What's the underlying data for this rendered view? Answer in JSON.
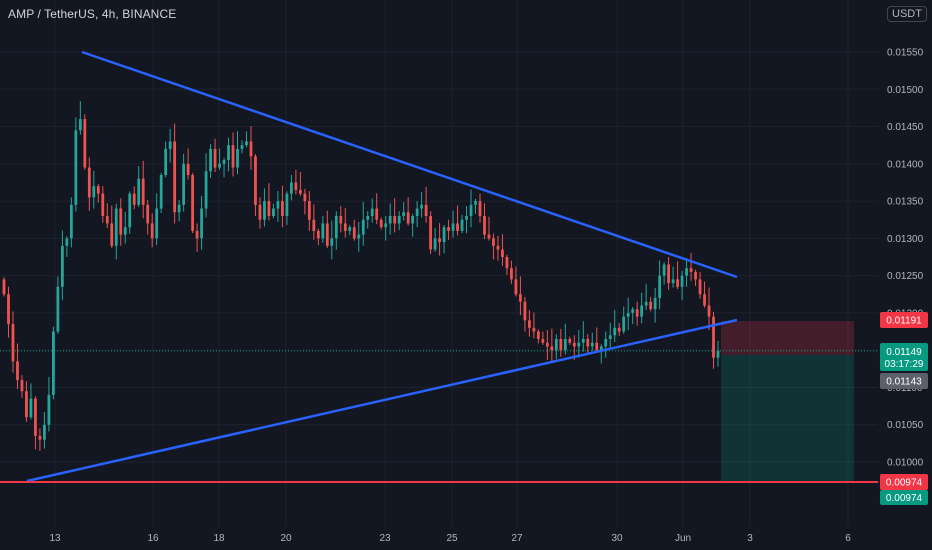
{
  "header": {
    "title": "AMP / TetherUS, 4h, BINANCE",
    "currency_button": "USDT"
  },
  "price_tags": {
    "target": {
      "label": "0.01191",
      "value": 0.01191,
      "color": "#f23645"
    },
    "current": {
      "label": "0.01149",
      "value": 0.01149,
      "color": "#089981"
    },
    "countdown": {
      "label": "03:17:29",
      "color": "#089981"
    },
    "crosshair": {
      "label": "0.01143",
      "value": 0.01143,
      "color": "#5d606b"
    },
    "horizontal_line": {
      "label": "0.00974",
      "value": 0.00974,
      "color": "#f23645"
    },
    "stop": {
      "label": "0.00974",
      "value": 0.00974,
      "color": "#089981"
    }
  },
  "chart_data": {
    "type": "candlestick",
    "title": "AMP / TetherUS, 4h, BINANCE",
    "y_ticks": [
      "0.01550",
      "0.01500",
      "0.01450",
      "0.01400",
      "0.01350",
      "0.01300",
      "0.01250",
      "0.01200",
      "0.01150",
      "0.01100",
      "0.01050",
      "0.01000"
    ],
    "y_tick_values": [
      0.0155,
      0.015,
      0.0145,
      0.014,
      0.0135,
      0.013,
      0.0125,
      0.012,
      0.0115,
      0.011,
      0.0105,
      0.01
    ],
    "x_ticks": [
      "13",
      "16",
      "18",
      "20",
      "23",
      "25",
      "27",
      "30",
      "Jun",
      "3",
      "6"
    ],
    "ylim": [
      0.00955,
      0.016
    ],
    "colors": {
      "up": "#26a69a",
      "down": "#ef5350",
      "trendline": "#2962ff",
      "hline": "#f23645"
    },
    "candles_close": [
      0.01225,
      0.01185,
      0.01135,
      0.0111,
      0.01095,
      0.0106,
      0.01085,
      0.01035,
      0.0103,
      0.0105,
      0.0109,
      0.01175,
      0.01235,
      0.0129,
      0.013,
      0.01345,
      0.01445,
      0.0146,
      0.01395,
      0.01355,
      0.0137,
      0.0136,
      0.0133,
      0.0132,
      0.0129,
      0.0134,
      0.01305,
      0.01315,
      0.0136,
      0.01345,
      0.0138,
      0.01345,
      0.0132,
      0.013,
      0.0134,
      0.01385,
      0.0142,
      0.0143,
      0.01335,
      0.01345,
      0.014,
      0.01385,
      0.0131,
      0.013,
      0.0134,
      0.0139,
      0.0142,
      0.01395,
      0.014,
      0.01405,
      0.01425,
      0.01395,
      0.0142,
      0.01425,
      0.0143,
      0.0141,
      0.01345,
      0.01325,
      0.0135,
      0.0133,
      0.0134,
      0.0135,
      0.0133,
      0.0136,
      0.01375,
      0.01365,
      0.0136,
      0.0135,
      0.01325,
      0.0131,
      0.013,
      0.0132,
      0.0129,
      0.013,
      0.0133,
      0.0132,
      0.0131,
      0.01315,
      0.013,
      0.01305,
      0.01325,
      0.0133,
      0.0134,
      0.01325,
      0.01315,
      0.0132,
      0.0133,
      0.0132,
      0.0133,
      0.01335,
      0.0132,
      0.0133,
      0.0134,
      0.01345,
      0.0133,
      0.01285,
      0.013,
      0.01295,
      0.01315,
      0.0131,
      0.0132,
      0.0131,
      0.01325,
      0.0133,
      0.01345,
      0.0135,
      0.0133,
      0.01305,
      0.013,
      0.0129,
      0.01285,
      0.01275,
      0.0126,
      0.01245,
      0.01225,
      0.01215,
      0.0119,
      0.0118,
      0.01175,
      0.01165,
      0.0116,
      0.01155,
      0.0115,
      0.01165,
      0.0115,
      0.01165,
      0.0116,
      0.01155,
      0.0116,
      0.01165,
      0.01155,
      0.0116,
      0.0115,
      0.01155,
      0.01165,
      0.0117,
      0.0118,
      0.01175,
      0.01195,
      0.012,
      0.01205,
      0.01195,
      0.0121,
      0.01215,
      0.01205,
      0.0122,
      0.0125,
      0.01265,
      0.0124,
      0.01245,
      0.01235,
      0.0125,
      0.0126,
      0.01255,
      0.01245,
      0.01225,
      0.0121,
      0.01195,
      0.0114,
      0.01149
    ]
  }
}
